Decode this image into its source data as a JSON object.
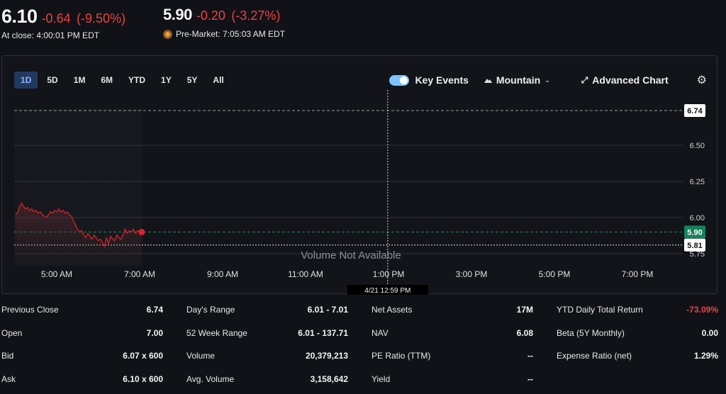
{
  "quote": {
    "close_price": "6.10",
    "close_change": "-0.64",
    "close_change_pct": "(-9.50%)",
    "close_time": "At close: 4:00:01 PM EDT",
    "pre_price": "5.90",
    "pre_change": "-0.20",
    "pre_change_pct": "(-3.27%)",
    "pre_time": "Pre-Market: 7:05:03 AM EDT"
  },
  "ranges": [
    "1D",
    "5D",
    "1M",
    "6M",
    "YTD",
    "1Y",
    "5Y",
    "All"
  ],
  "active_range": "1D",
  "toolbar": {
    "key_events": "Key Events",
    "mountain": "Mountain",
    "advanced_chart": "Advanced Chart"
  },
  "colors": {
    "down": "#ef4141",
    "line": "#d4202a",
    "current_badge": "#15825b",
    "active_range_bg": "#23395f"
  },
  "chart_data": {
    "type": "line",
    "yticks": [
      "6.50",
      "6.25",
      "6.00",
      "5.75"
    ],
    "ylim": [
      5.75,
      6.78
    ],
    "xticks": [
      "5:00 AM",
      "7:00 AM",
      "9:00 AM",
      "11:00 AM",
      "1:00 PM",
      "3:00 PM",
      "5:00 PM",
      "7:00 PM"
    ],
    "prev_close_label": "6.74",
    "prev_close_value": 6.74,
    "current_label": "5.90",
    "current_value": 5.9,
    "crosshair_label": "5.81",
    "crosshair_value": 5.81,
    "crosshair_time": "4/21 12:59 PM",
    "volume_note": "Volume Not Available",
    "series": [
      {
        "x_hours": [
          4.0,
          4.05,
          4.1,
          4.15,
          4.2,
          4.25,
          4.3,
          4.35,
          4.4,
          4.45,
          4.5,
          4.55,
          4.6,
          4.65,
          4.7,
          4.75,
          4.8,
          4.85,
          4.9,
          4.95,
          5.0,
          5.05,
          5.1,
          5.15,
          5.2,
          5.25,
          5.3,
          5.35,
          5.4,
          5.45,
          5.5,
          5.55,
          5.6,
          5.65,
          5.7,
          5.75,
          5.8,
          5.85,
          5.9,
          5.95,
          6.0,
          6.05,
          6.1,
          6.15,
          6.2,
          6.25,
          6.3,
          6.35,
          6.4,
          6.45,
          6.5,
          6.55,
          6.6,
          6.65,
          6.7,
          6.75,
          6.8,
          6.85,
          6.9,
          6.95,
          7.0,
          7.05
        ],
        "values": [
          6.02,
          6.03,
          6.07,
          6.1,
          6.08,
          6.06,
          6.07,
          6.05,
          6.06,
          6.04,
          6.05,
          6.03,
          6.04,
          6.02,
          6.01,
          6.0,
          6.02,
          6.04,
          6.03,
          6.05,
          6.04,
          6.06,
          6.04,
          6.05,
          6.03,
          6.04,
          6.02,
          6.01,
          5.98,
          5.95,
          5.92,
          5.9,
          5.91,
          5.88,
          5.86,
          5.89,
          5.87,
          5.85,
          5.88,
          5.86,
          5.84,
          5.85,
          5.83,
          5.8,
          5.86,
          5.82,
          5.87,
          5.85,
          5.84,
          5.88,
          5.86,
          5.85,
          5.88,
          5.92,
          5.89,
          5.91,
          5.9,
          5.92,
          5.89,
          5.91,
          5.9,
          5.9
        ]
      }
    ]
  },
  "stats": [
    [
      {
        "label": "Previous Close",
        "value": "6.74"
      },
      {
        "label": "Open",
        "value": "7.00"
      },
      {
        "label": "Bid",
        "value": "6.07 x 600"
      },
      {
        "label": "Ask",
        "value": "6.10 x 600"
      }
    ],
    [
      {
        "label": "Day's Range",
        "value": "6.01 - 7.01"
      },
      {
        "label": "52 Week Range",
        "value": "6.01 - 137.71"
      },
      {
        "label": "Volume",
        "value": "20,379,213"
      },
      {
        "label": "Avg. Volume",
        "value": "3,158,642"
      }
    ],
    [
      {
        "label": "Net Assets",
        "value": "17M"
      },
      {
        "label": "NAV",
        "value": "6.08"
      },
      {
        "label": "PE Ratio (TTM)",
        "value": "--"
      },
      {
        "label": "Yield",
        "value": "--"
      }
    ],
    [
      {
        "label": "YTD Daily Total Return",
        "value": "-73.09%"
      },
      {
        "label": "Beta (5Y Monthly)",
        "value": "0.00"
      },
      {
        "label": "Expense Ratio (net)",
        "value": "1.29%"
      }
    ]
  ]
}
